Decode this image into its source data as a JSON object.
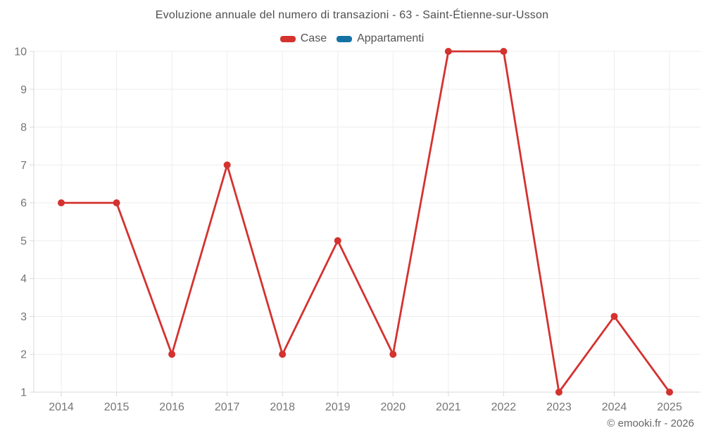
{
  "title": "Evoluzione annuale del numero di transazioni - 63 - Saint-Étienne-sur-Usson",
  "copyright": "© emooki.fr - 2026",
  "colors": {
    "series_case": "#d4322f",
    "series_appartamenti": "#1572a5",
    "gridline": "#ededed",
    "axis_line": "#d9d9d9",
    "tick": "#d9d9d9",
    "axis_text": "#757575",
    "title_text": "#4f4f4f",
    "legend_text": "#545454",
    "background": "#ffffff"
  },
  "legend": [
    {
      "label": "Case",
      "color": "#d4322f"
    },
    {
      "label": "Appartamenti",
      "color": "#1572a5"
    }
  ],
  "chart_data": {
    "type": "line",
    "title": "Evoluzione annuale del numero di transazioni - 63 - Saint-Étienne-sur-Usson",
    "x": [
      "2014",
      "2015",
      "2016",
      "2017",
      "2018",
      "2019",
      "2020",
      "2021",
      "2022",
      "2023",
      "2024",
      "2025"
    ],
    "series": [
      {
        "name": "Case",
        "color": "#d4322f",
        "values": [
          6,
          6,
          2,
          7,
          2,
          5,
          2,
          10,
          10,
          1,
          3,
          1
        ]
      },
      {
        "name": "Appartamenti",
        "color": "#1572a5",
        "values": []
      }
    ],
    "xlabel": "",
    "ylabel": "",
    "ylim": [
      1,
      10
    ],
    "yticks": [
      1,
      2,
      3,
      4,
      5,
      6,
      7,
      8,
      9,
      10
    ],
    "grid": true,
    "legend_position": "top",
    "marker": "circle"
  }
}
